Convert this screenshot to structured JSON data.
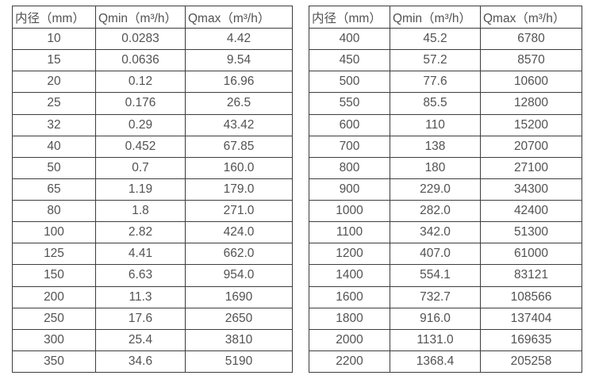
{
  "style": {
    "background_color": "#ffffff",
    "border_color": "#3d3d3d",
    "text_color": "#525252"
  },
  "chart_data": [
    {
      "type": "table",
      "title": "",
      "columns": [
        "内径（mm）",
        "Qmin（m³/h）",
        "Qmax（m³/h）"
      ],
      "rows": [
        [
          "10",
          "0.0283",
          "4.42"
        ],
        [
          "15",
          "0.0636",
          "9.54"
        ],
        [
          "20",
          "0.12",
          "16.96"
        ],
        [
          "25",
          "0.176",
          "26.5"
        ],
        [
          "32",
          "0.29",
          "43.42"
        ],
        [
          "40",
          "0.452",
          "67.85"
        ],
        [
          "50",
          "0.7",
          "160.0"
        ],
        [
          "65",
          "1.19",
          "179.0"
        ],
        [
          "80",
          "1.8",
          "271.0"
        ],
        [
          "100",
          "2.82",
          "424.0"
        ],
        [
          "125",
          "4.41",
          "662.0"
        ],
        [
          "150",
          "6.63",
          "954.0"
        ],
        [
          "200",
          "11.3",
          "1690"
        ],
        [
          "250",
          "17.6",
          "2650"
        ],
        [
          "300",
          "25.4",
          "3810"
        ],
        [
          "350",
          "34.6",
          "5190"
        ]
      ]
    },
    {
      "type": "table",
      "title": "",
      "columns": [
        "内径（mm）",
        "Qmin（m³/h）",
        "Qmax（m³/h）"
      ],
      "rows": [
        [
          "400",
          "45.2",
          "6780"
        ],
        [
          "450",
          "57.2",
          "8570"
        ],
        [
          "500",
          "77.6",
          "10600"
        ],
        [
          "550",
          "85.5",
          "12800"
        ],
        [
          "600",
          "110",
          "15200"
        ],
        [
          "700",
          "138",
          "20700"
        ],
        [
          "800",
          "180",
          "27100"
        ],
        [
          "900",
          "229.0",
          "34300"
        ],
        [
          "1000",
          "282.0",
          "42400"
        ],
        [
          "1100",
          "342.0",
          "51300"
        ],
        [
          "1200",
          "407.0",
          "61000"
        ],
        [
          "1400",
          "554.1",
          "83121"
        ],
        [
          "1600",
          "732.7",
          "108566"
        ],
        [
          "1800",
          "916.0",
          "137404"
        ],
        [
          "2000",
          "1131.0",
          "169635"
        ],
        [
          "2200",
          "1368.4",
          "205258"
        ]
      ]
    }
  ]
}
